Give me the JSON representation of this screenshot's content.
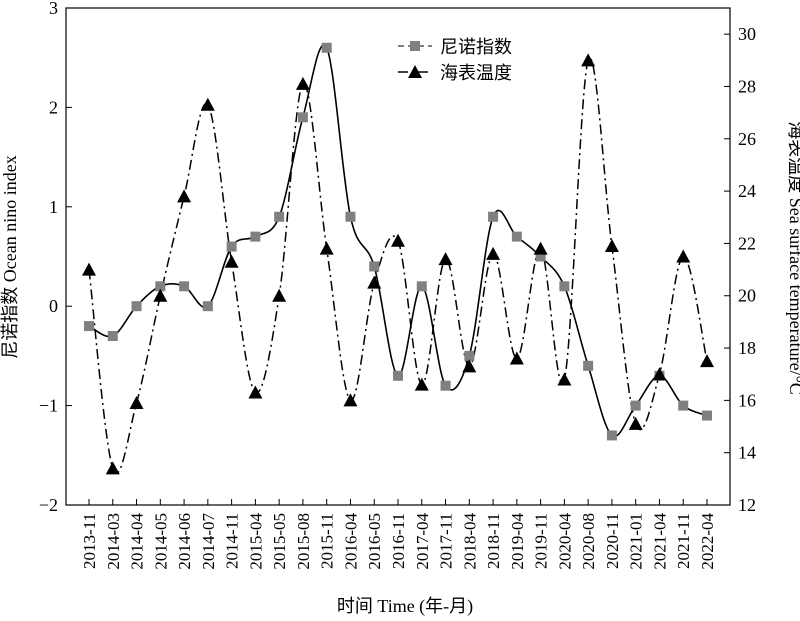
{
  "chart_data": {
    "type": "line",
    "categories": [
      "2013-11",
      "2014-03",
      "2014-04",
      "2014-05",
      "2014-06",
      "2014-07",
      "2014-11",
      "2015-04",
      "2015-05",
      "2015-08",
      "2015-11",
      "2016-04",
      "2016-05",
      "2016-11",
      "2017-04",
      "2017-11",
      "2018-04",
      "2018-11",
      "2019-04",
      "2019-11",
      "2020-04",
      "2020-08",
      "2020-11",
      "2021-01",
      "2021-04",
      "2021-11",
      "2022-04"
    ],
    "xlabel": "时间 Time (年-月)",
    "ylabel_left": "尼诺指数 Ocean nino index",
    "ylabel_right": "海表温度 Sea surface temperature/°C",
    "ylim_left": [
      -2,
      3
    ],
    "ylim_right": [
      12,
      31
    ],
    "yticks_left": [
      -2,
      -1,
      0,
      1,
      2,
      3
    ],
    "yticks_right": [
      12,
      14,
      16,
      18,
      20,
      22,
      24,
      26,
      28,
      30
    ],
    "grid": false,
    "legend_position": "top-center",
    "series": [
      {
        "name": "尼诺指数",
        "axis": "left",
        "marker": "square",
        "color": "#808080",
        "values": [
          -0.2,
          -0.3,
          0.0,
          0.2,
          0.2,
          0.0,
          0.6,
          0.7,
          0.9,
          1.9,
          2.6,
          0.9,
          0.4,
          -0.7,
          0.2,
          -0.8,
          -0.5,
          0.9,
          0.7,
          0.5,
          0.2,
          -0.6,
          -1.3,
          -1.0,
          -0.7,
          -1.0,
          -1.1
        ]
      },
      {
        "name": "海表温度",
        "axis": "right",
        "marker": "triangle",
        "color": "#000000",
        "values": [
          21.0,
          13.4,
          15.9,
          20.0,
          23.8,
          27.3,
          21.3,
          16.3,
          20.0,
          28.1,
          21.8,
          16.0,
          20.5,
          22.1,
          16.6,
          21.4,
          17.3,
          21.6,
          17.6,
          21.8,
          16.8,
          29.0,
          21.9,
          15.1,
          17.0,
          21.5,
          17.5
        ]
      }
    ]
  }
}
